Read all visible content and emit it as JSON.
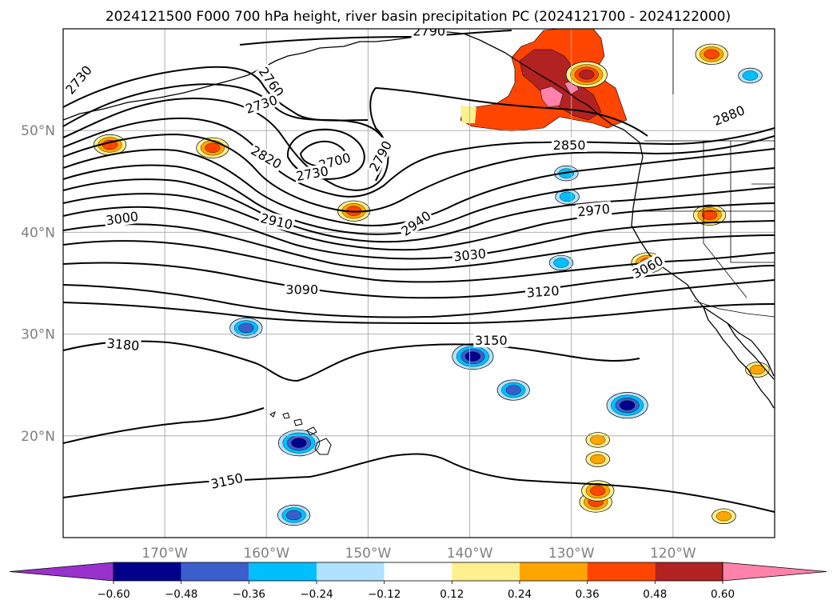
{
  "title": "2024121500 F000 700 hPa height, river basin precipitation PC (2024121700 - 2024122000)",
  "map": {
    "projection": "equirectangular",
    "lon_range": [
      -180,
      -110
    ],
    "lat_range": [
      10,
      60
    ],
    "gridlines": true,
    "lon_ticks": [
      {
        "lon": -170,
        "label": "170°W"
      },
      {
        "lon": -160,
        "label": "160°W"
      },
      {
        "lon": -150,
        "label": "150°W"
      },
      {
        "lon": -140,
        "label": "140°W"
      },
      {
        "lon": -130,
        "label": "130°W"
      },
      {
        "lon": -120,
        "label": "120°W"
      }
    ],
    "lat_ticks": [
      {
        "lat": 50,
        "label": "50°N"
      },
      {
        "lat": 40,
        "label": "40°N"
      },
      {
        "lat": 30,
        "label": "30°N"
      },
      {
        "lat": 20,
        "label": "20°N"
      }
    ]
  },
  "chart_data": {
    "type": "contour",
    "contour_field": "700 hPa height",
    "contour_labels": [
      {
        "text": "2730",
        "lon": -178.5,
        "lat": 55.0,
        "rot": -50
      },
      {
        "text": "2760",
        "lon": -159.5,
        "lat": 54.8,
        "rot": 55
      },
      {
        "text": "2730",
        "lon": -160.5,
        "lat": 52.6,
        "rot": -18
      },
      {
        "text": "2790",
        "lon": -144.0,
        "lat": 59.8,
        "rot": 0
      },
      {
        "text": "2700",
        "lon": -153.3,
        "lat": 47.0,
        "rot": -15
      },
      {
        "text": "2730",
        "lon": -155.5,
        "lat": 45.8,
        "rot": -10
      },
      {
        "text": "2790",
        "lon": -148.8,
        "lat": 47.5,
        "rot": -62
      },
      {
        "text": "2820",
        "lon": -160.0,
        "lat": 47.4,
        "rot": 30
      },
      {
        "text": "2850",
        "lon": -130.2,
        "lat": 48.6,
        "rot": 0
      },
      {
        "text": "2880",
        "lon": -114.5,
        "lat": 51.5,
        "rot": -22
      },
      {
        "text": "2910",
        "lon": -159.0,
        "lat": 41.1,
        "rot": 13
      },
      {
        "text": "2940",
        "lon": -145.3,
        "lat": 40.9,
        "rot": -35
      },
      {
        "text": "2970",
        "lon": -127.8,
        "lat": 42.2,
        "rot": -6
      },
      {
        "text": "3000",
        "lon": -174.2,
        "lat": 41.4,
        "rot": -8
      },
      {
        "text": "3030",
        "lon": -140.0,
        "lat": 37.8,
        "rot": -6
      },
      {
        "text": "3060",
        "lon": -122.5,
        "lat": 36.6,
        "rot": -28
      },
      {
        "text": "3090",
        "lon": -156.5,
        "lat": 34.4,
        "rot": 0
      },
      {
        "text": "3120",
        "lon": -132.8,
        "lat": 34.2,
        "rot": -4
      },
      {
        "text": "3150",
        "lon": -137.9,
        "lat": 29.4,
        "rot": 0
      },
      {
        "text": "3180",
        "lon": -174.1,
        "lat": 29.0,
        "rot": 5
      },
      {
        "text": "3150",
        "lon": -163.9,
        "lat": 15.6,
        "rot": -12
      }
    ],
    "fill_field": "river basin precipitation PC",
    "colorbar": {
      "extend": "both",
      "levels": [
        -0.6,
        -0.48,
        -0.36,
        -0.24,
        -0.12,
        0.12,
        0.24,
        0.36,
        0.48,
        0.6
      ],
      "tick_labels": [
        "−0.60",
        "−0.48",
        "−0.36",
        "−0.24",
        "−0.12",
        "0.12",
        "0.24",
        "0.36",
        "0.48",
        "0.60"
      ],
      "colors": [
        "#9932cc",
        "#00008b",
        "#3a5fcd",
        "#00bfff",
        "#b0e2ff",
        "#ffffff",
        "#fff08f",
        "#ffa500",
        "#ff4500",
        "#b22222",
        "#ff82ab"
      ]
    },
    "positive_regions": [
      {
        "lon": -128.5,
        "lat": 55.5,
        "level": 4
      },
      {
        "lon": -165.3,
        "lat": 48.3,
        "level": 3
      },
      {
        "lon": -175.4,
        "lat": 48.6,
        "level": 3
      },
      {
        "lon": -151.4,
        "lat": 42.1,
        "level": 3
      },
      {
        "lon": -116.4,
        "lat": 41.7,
        "level": 3
      },
      {
        "lon": -116.2,
        "lat": 57.5,
        "level": 3
      },
      {
        "lon": -122.5,
        "lat": 37.0,
        "level": 3
      },
      {
        "lon": -127.6,
        "lat": 13.5,
        "level": 3
      },
      {
        "lon": -127.4,
        "lat": 14.6,
        "level": 3
      },
      {
        "lon": -127.4,
        "lat": 17.7,
        "level": 2
      },
      {
        "lon": -127.4,
        "lat": 19.6,
        "level": 2
      },
      {
        "lon": -115.0,
        "lat": 12.1,
        "level": 2
      },
      {
        "lon": -111.7,
        "lat": 26.5,
        "level": 2
      }
    ],
    "negative_regions": [
      {
        "lon": -156.8,
        "lat": 19.3,
        "level": -4
      },
      {
        "lon": -124.5,
        "lat": 23.0,
        "level": -4
      },
      {
        "lon": -139.7,
        "lat": 27.8,
        "level": -4
      },
      {
        "lon": -135.7,
        "lat": 24.5,
        "level": -3
      },
      {
        "lon": -162.0,
        "lat": 30.6,
        "level": -3
      },
      {
        "lon": -157.3,
        "lat": 12.2,
        "level": -3
      },
      {
        "lon": -130.4,
        "lat": 43.5,
        "level": -2
      },
      {
        "lon": -131.0,
        "lat": 37.0,
        "level": -2
      },
      {
        "lon": -130.5,
        "lat": 45.8,
        "level": -2
      },
      {
        "lon": -112.4,
        "lat": 55.4,
        "level": -2
      }
    ]
  }
}
